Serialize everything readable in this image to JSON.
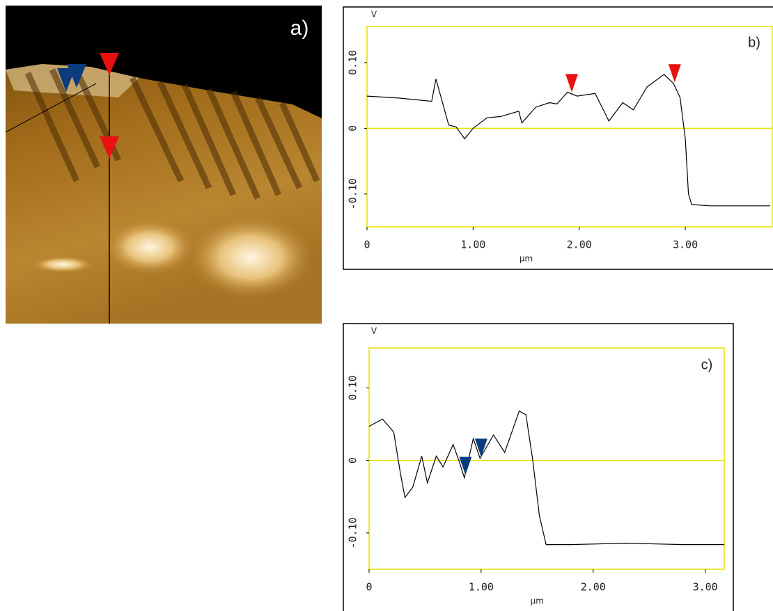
{
  "image_panel": {
    "label": "a)"
  },
  "chart_data": [
    {
      "type": "line",
      "label": "b)",
      "y_label": "V",
      "x_label": "µm",
      "x": [
        0,
        0.3,
        0.61,
        0.65,
        0.77,
        0.84,
        0.92,
        1.0,
        1.13,
        1.26,
        1.43,
        1.46,
        1.59,
        1.72,
        1.79,
        1.89,
        1.98,
        2.15,
        2.28,
        2.41,
        2.51,
        2.64,
        2.8,
        2.89,
        2.95,
        3.0,
        3.03,
        3.06,
        3.23,
        3.49,
        3.8
      ],
      "values": [
        0.049,
        0.046,
        0.041,
        0.075,
        0.005,
        0.002,
        -0.016,
        0,
        0.016,
        0.018,
        0.026,
        0.008,
        0.032,
        0.039,
        0.037,
        0.055,
        0.049,
        0.053,
        0.011,
        0.039,
        0.028,
        0.063,
        0.082,
        0.068,
        0.047,
        -0.016,
        -0.1,
        -0.116,
        -0.118,
        -0.118,
        -0.118
      ],
      "color": "#000000",
      "markers": [
        {
          "x": 1.93,
          "y": 0.055,
          "color": "#e81010"
        },
        {
          "x": 2.9,
          "y": 0.07,
          "color": "#e81010"
        }
      ],
      "xlim": [
        0,
        3.82
      ],
      "ylim": [
        -0.15,
        0.155
      ],
      "xticks": [
        0,
        {
          "value": 1,
          "label": "1.00"
        },
        {
          "value": 2,
          "label": "2.00"
        },
        {
          "value": 3,
          "label": "3.00"
        }
      ],
      "yticks": [
        {
          "value": 0.1,
          "label": "0.10"
        },
        0,
        {
          "value": -0.1,
          "label": "-0.10"
        }
      ],
      "axis_color": "#e6e000",
      "zero_line": true
    },
    {
      "type": "line",
      "label": "c)",
      "y_label": "V",
      "x_label": "µm",
      "x": [
        0,
        0.12,
        0.22,
        0.28,
        0.32,
        0.39,
        0.47,
        0.52,
        0.6,
        0.66,
        0.75,
        0.81,
        0.85,
        0.93,
        0.99,
        1.11,
        1.21,
        1.34,
        1.4,
        1.46,
        1.52,
        1.58,
        1.8,
        2.3,
        2.8,
        3.17
      ],
      "values": [
        0.047,
        0.057,
        0.039,
        -0.018,
        -0.051,
        -0.037,
        0.006,
        -0.031,
        0.006,
        -0.009,
        0.022,
        -0.004,
        -0.024,
        0.03,
        0.003,
        0.035,
        0.011,
        0.068,
        0.063,
        0.001,
        -0.076,
        -0.116,
        -0.116,
        -0.114,
        -0.116,
        -0.116
      ],
      "color": "#000000",
      "markers": [
        {
          "x": 0.86,
          "y": -0.02,
          "color": "#0b3b7c"
        },
        {
          "x": 1.0,
          "y": 0.005,
          "color": "#0b3b7c"
        }
      ],
      "xlim": [
        0,
        3.17
      ],
      "ylim": [
        -0.15,
        0.155
      ],
      "xticks": [
        0,
        {
          "value": 1,
          "label": "1.00"
        },
        {
          "value": 2,
          "label": "2.00"
        },
        {
          "value": 3,
          "label": "3.00"
        }
      ],
      "yticks": [
        {
          "value": 0.1,
          "label": "0.10"
        },
        0,
        {
          "value": -0.1,
          "label": "-0.10"
        }
      ],
      "axis_color": "#e6e000",
      "zero_line": true
    }
  ]
}
